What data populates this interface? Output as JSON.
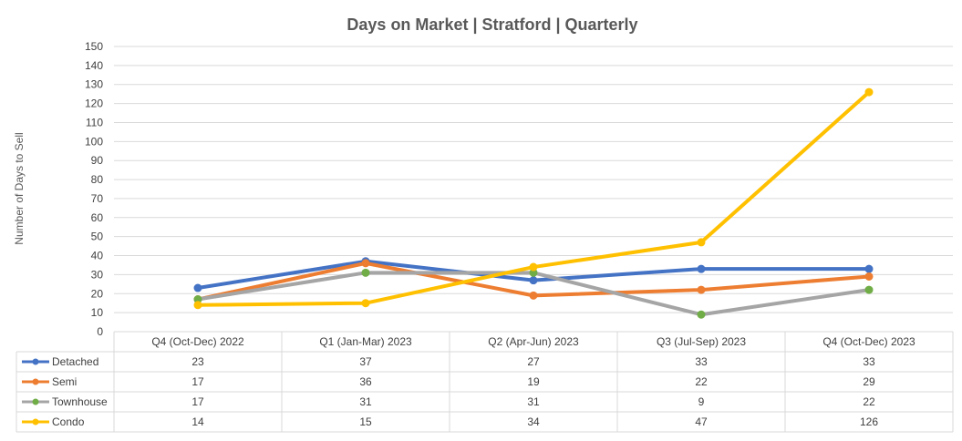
{
  "chart_data": {
    "type": "line",
    "title": "Days on Market | Stratford | Quarterly",
    "ylabel": "Number of Days to Sell",
    "xlabel": "",
    "ylim": [
      0,
      150
    ],
    "ytick_step": 10,
    "categories": [
      "Q4 (Oct-Dec) 2022",
      "Q1 (Jan-Mar) 2023",
      "Q2 (Apr-Jun) 2023",
      "Q3 (Jul-Sep) 2023",
      "Q4 (Oct-Dec) 2023"
    ],
    "series": [
      {
        "name": "Detached",
        "color": "#4472C4",
        "values": [
          23,
          37,
          27,
          33,
          33
        ]
      },
      {
        "name": "Semi",
        "color": "#ED7D31",
        "values": [
          17,
          36,
          19,
          22,
          29
        ]
      },
      {
        "name": "Townhouse",
        "color": "#A5A5A5",
        "values": [
          17,
          31,
          31,
          9,
          22
        ]
      },
      {
        "name": "Condo",
        "color": "#FFC000",
        "values": [
          14,
          15,
          34,
          47,
          126
        ]
      }
    ],
    "grid": true,
    "legend": "data-table"
  },
  "style": {
    "marker_colors": {
      "Townhouse": "#70AD47"
    },
    "grid_color": "#D9D9D9",
    "text_color": "#404040",
    "title_color": "#595959"
  }
}
